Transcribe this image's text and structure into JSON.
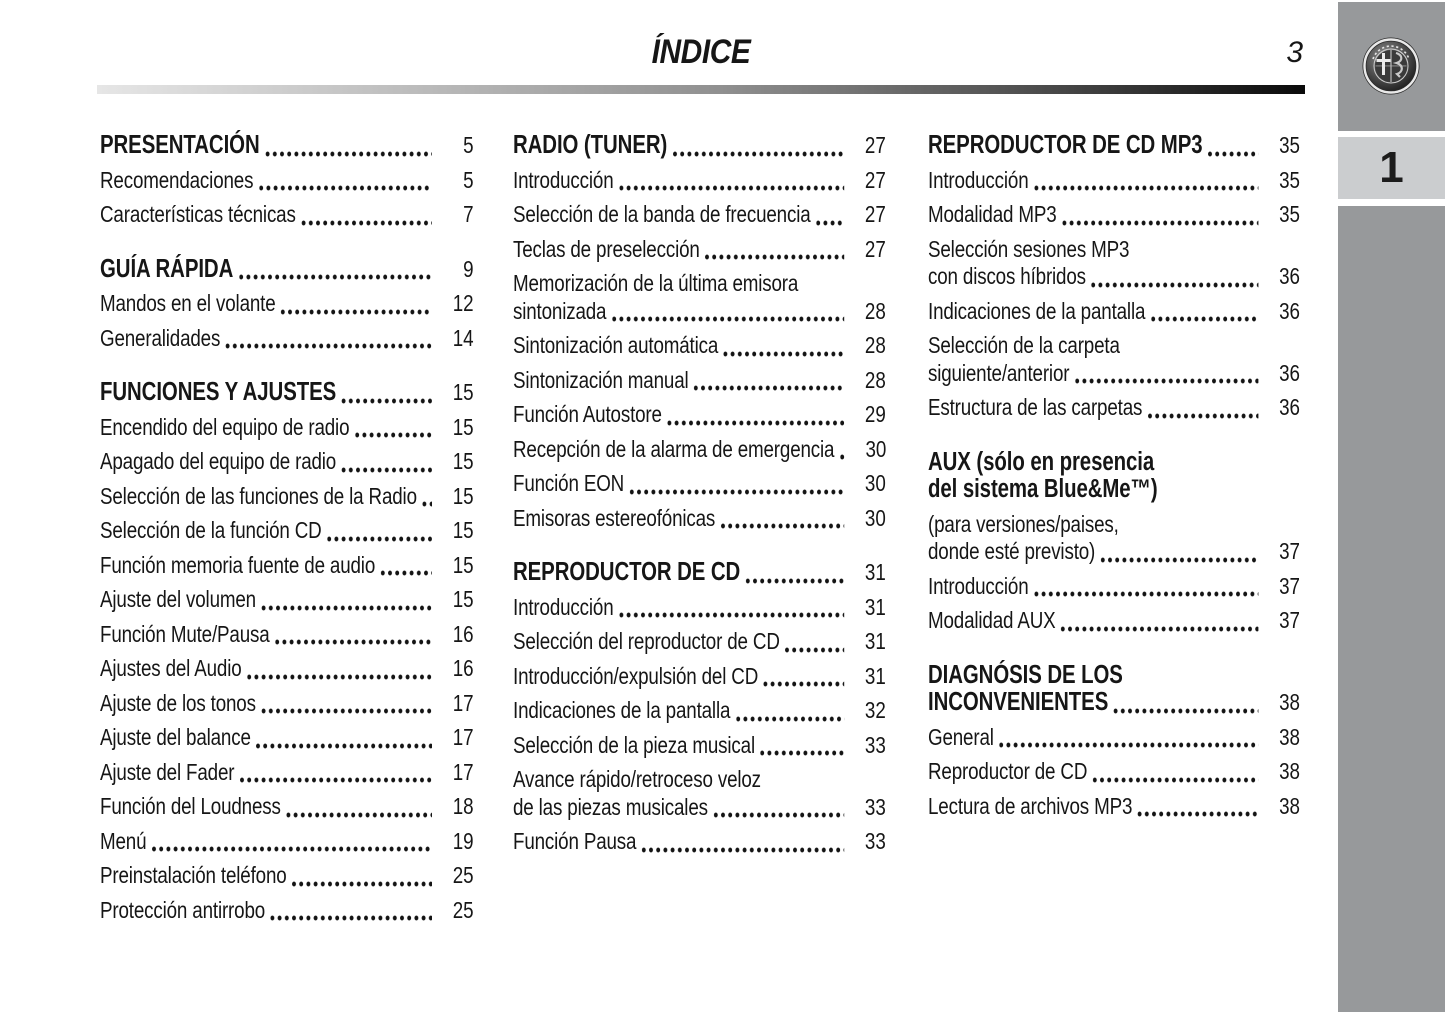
{
  "header": {
    "title": "ÍNDICE",
    "page_number": "3"
  },
  "sidebar": {
    "tab_label": "1",
    "logo_icon": "alfa-romeo-logo"
  },
  "colors": {
    "sidebar_gray": "#97999b",
    "tab_gray": "#cbcdcf",
    "text": "#161616"
  },
  "toc": {
    "columns": [
      {
        "blocks": [
          {
            "entries": [
              {
                "style": "heading",
                "lines": [
                  "PRESENTACIÓN"
                ],
                "page": "5"
              },
              {
                "style": "item",
                "lines": [
                  "Recomendaciones"
                ],
                "page": "5"
              },
              {
                "style": "item",
                "lines": [
                  "Características técnicas"
                ],
                "page": "7"
              }
            ]
          },
          {
            "entries": [
              {
                "style": "heading",
                "lines": [
                  "GUÍA RÁPIDA"
                ],
                "page": "9"
              },
              {
                "style": "item",
                "lines": [
                  "Mandos en el volante"
                ],
                "page": "12"
              },
              {
                "style": "item",
                "lines": [
                  "Generalidades"
                ],
                "page": "14"
              }
            ]
          },
          {
            "entries": [
              {
                "style": "heading",
                "lines": [
                  "FUNCIONES Y AJUSTES"
                ],
                "page": "15"
              },
              {
                "style": "item",
                "lines": [
                  "Encendido del equipo de radio"
                ],
                "page": "15"
              },
              {
                "style": "item",
                "lines": [
                  "Apagado del equipo de radio"
                ],
                "page": "15"
              },
              {
                "style": "item",
                "lines": [
                  "Selección de las funciones de la Radio"
                ],
                "page": "15"
              },
              {
                "style": "item",
                "lines": [
                  "Selección de la función CD"
                ],
                "page": "15"
              },
              {
                "style": "item",
                "lines": [
                  "Función memoria fuente de audio"
                ],
                "page": "15"
              },
              {
                "style": "item",
                "lines": [
                  "Ajuste del volumen"
                ],
                "page": "15"
              },
              {
                "style": "item",
                "lines": [
                  "Función Mute/Pausa"
                ],
                "page": "16"
              },
              {
                "style": "item",
                "lines": [
                  "Ajustes del Audio"
                ],
                "page": "16"
              },
              {
                "style": "item",
                "lines": [
                  "Ajuste de los tonos"
                ],
                "page": "17"
              },
              {
                "style": "item",
                "lines": [
                  "Ajuste del balance"
                ],
                "page": "17"
              },
              {
                "style": "item",
                "lines": [
                  "Ajuste del Fader"
                ],
                "page": "17"
              },
              {
                "style": "item",
                "lines": [
                  "Función del Loudness"
                ],
                "page": "18"
              },
              {
                "style": "item",
                "lines": [
                  "Menú"
                ],
                "page": "19"
              },
              {
                "style": "item",
                "lines": [
                  "Preinstalación teléfono"
                ],
                "page": "25"
              },
              {
                "style": "item",
                "lines": [
                  "Protección antirrobo"
                ],
                "page": "25"
              }
            ]
          }
        ]
      },
      {
        "blocks": [
          {
            "entries": [
              {
                "style": "heading",
                "lines": [
                  "RADIO (TUNER)"
                ],
                "page": "27"
              },
              {
                "style": "item",
                "lines": [
                  "Introducción"
                ],
                "page": "27"
              },
              {
                "style": "item",
                "lines": [
                  "Selección de la banda de frecuencia"
                ],
                "page": "27"
              },
              {
                "style": "item",
                "lines": [
                  "Teclas de preselección"
                ],
                "page": "27"
              },
              {
                "style": "item",
                "lines": [
                  "Memorización de la última emisora",
                  "sintonizada"
                ],
                "page": "28"
              },
              {
                "style": "item",
                "lines": [
                  "Sintonización automática"
                ],
                "page": "28"
              },
              {
                "style": "item",
                "lines": [
                  "Sintonización manual"
                ],
                "page": "28"
              },
              {
                "style": "item",
                "lines": [
                  "Función Autostore"
                ],
                "page": "29"
              },
              {
                "style": "item",
                "lines": [
                  "Recepción de la alarma de emergencia"
                ],
                "page": "30"
              },
              {
                "style": "item",
                "lines": [
                  "Función EON"
                ],
                "page": "30"
              },
              {
                "style": "item",
                "lines": [
                  "Emisoras estereofónicas"
                ],
                "page": "30"
              }
            ]
          },
          {
            "entries": [
              {
                "style": "heading",
                "lines": [
                  "REPRODUCTOR DE CD"
                ],
                "page": "31"
              },
              {
                "style": "item",
                "lines": [
                  "Introducción"
                ],
                "page": "31"
              },
              {
                "style": "item",
                "lines": [
                  "Selección del reproductor de CD"
                ],
                "page": "31"
              },
              {
                "style": "item",
                "lines": [
                  "Introducción/expulsión del CD"
                ],
                "page": "31"
              },
              {
                "style": "item",
                "lines": [
                  "Indicaciones de la pantalla"
                ],
                "page": "32"
              },
              {
                "style": "item",
                "lines": [
                  "Selección de la pieza musical"
                ],
                "page": "33"
              },
              {
                "style": "item",
                "lines": [
                  "Avance rápido/retroceso veloz",
                  "de las piezas musicales"
                ],
                "page": "33"
              },
              {
                "style": "item",
                "lines": [
                  "Función Pausa"
                ],
                "page": "33"
              }
            ]
          }
        ]
      },
      {
        "blocks": [
          {
            "entries": [
              {
                "style": "heading",
                "lines": [
                  "REPRODUCTOR DE CD MP3"
                ],
                "page": "35"
              },
              {
                "style": "item",
                "lines": [
                  "Introducción"
                ],
                "page": "35"
              },
              {
                "style": "item",
                "lines": [
                  "Modalidad MP3"
                ],
                "page": "35"
              },
              {
                "style": "item",
                "lines": [
                  "Selección sesiones MP3",
                  "con discos híbridos"
                ],
                "page": "36"
              },
              {
                "style": "item",
                "lines": [
                  "Indicaciones de la pantalla"
                ],
                "page": "36"
              },
              {
                "style": "item",
                "lines": [
                  "Selección de la carpeta",
                  "siguiente/anterior"
                ],
                "page": "36"
              },
              {
                "style": "item",
                "lines": [
                  "Estructura de las carpetas"
                ],
                "page": "36"
              }
            ]
          },
          {
            "entries": [
              {
                "style": "heading",
                "lines": [
                  "AUX (sólo en presencia",
                  "del sistema Blue&Me™)"
                ],
                "page": null
              },
              {
                "style": "item",
                "lines": [
                  "(para versiones/paises,",
                  "donde esté previsto)"
                ],
                "page": "37"
              },
              {
                "style": "item",
                "lines": [
                  "Introducción"
                ],
                "page": "37"
              },
              {
                "style": "item",
                "lines": [
                  "Modalidad AUX"
                ],
                "page": "37"
              }
            ]
          },
          {
            "entries": [
              {
                "style": "heading",
                "lines": [
                  "DIAGNÓSIS DE LOS",
                  "INCONVENIENTES"
                ],
                "page": "38"
              },
              {
                "style": "item",
                "lines": [
                  "General"
                ],
                "page": "38"
              },
              {
                "style": "item",
                "lines": [
                  "Reproductor de CD"
                ],
                "page": "38"
              },
              {
                "style": "item",
                "lines": [
                  "Lectura de archivos MP3"
                ],
                "page": "38"
              }
            ]
          }
        ]
      }
    ]
  }
}
